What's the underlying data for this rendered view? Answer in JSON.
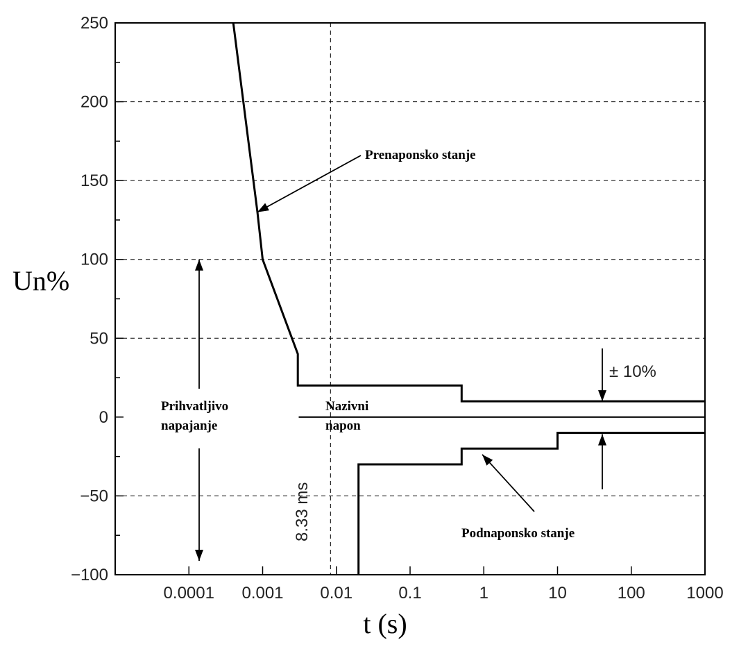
{
  "chart_data": {
    "type": "line",
    "title": "",
    "xlabel": "t (s)",
    "ylabel": "Un%",
    "x_scale": "log",
    "xlim": [
      1e-05,
      1000
    ],
    "ylim": [
      -100,
      250
    ],
    "x_ticks": [
      0.0001,
      0.001,
      0.01,
      0.1,
      1,
      10,
      100,
      1000
    ],
    "x_tick_labels": [
      "0.0001",
      "0.001",
      "0.01",
      "0.1",
      "1",
      "10",
      "100",
      "1000"
    ],
    "y_ticks": [
      -100,
      -50,
      0,
      50,
      100,
      150,
      200,
      250
    ],
    "y_tick_labels": [
      "−100",
      "−50",
      "0",
      "50",
      "100",
      "150",
      "200",
      "250"
    ],
    "grid": "dashed horizontal lines at y ticks",
    "series": [
      {
        "name": "Prenaponsko stanje",
        "points": [
          [
            0.0004,
            250
          ],
          [
            0.00085,
            130
          ],
          [
            0.001,
            100
          ],
          [
            0.003,
            40
          ],
          [
            0.003,
            20
          ],
          [
            0.5,
            20
          ],
          [
            0.5,
            10
          ],
          [
            1000,
            10
          ]
        ]
      },
      {
        "name": "Podnaponsko stanje",
        "points": [
          [
            0.02,
            -100
          ],
          [
            0.02,
            -30
          ],
          [
            0.5,
            -30
          ],
          [
            0.5,
            -20
          ],
          [
            10,
            -20
          ],
          [
            10,
            -10
          ],
          [
            1000,
            -10
          ]
        ]
      }
    ],
    "reference_line": {
      "y": 0,
      "x_from": 0.002,
      "x_to": 1000
    },
    "vertical_marker": {
      "x": 0.00833,
      "label": "8.33 ms"
    },
    "annotations": {
      "overvoltage": "Prenaponsko stanje",
      "undervoltage": "Podnaponsko stanje",
      "acceptable_line1": "Prihvatljivo",
      "acceptable_line2": "napajanje",
      "nominal_line1": "Nazivni",
      "nominal_line2": "napon",
      "tolerance": "± 10%"
    }
  }
}
